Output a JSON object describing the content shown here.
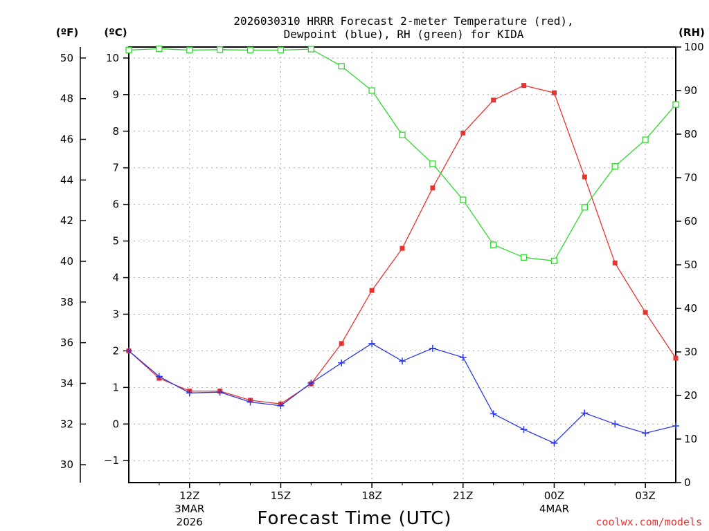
{
  "header": {
    "title_line1": "2026030310 HRRR Forecast 2-meter Temperature (red),",
    "title_line2": "Dewpoint (blue), RH (green) for KIDA",
    "unit_f": "(ºF)",
    "unit_c": "(ºC)",
    "unit_rh": "(RH)"
  },
  "footer": {
    "x_axis_label": "Forecast Time (UTC)",
    "credit": "coolwx.com/models"
  },
  "chart_data": {
    "type": "line",
    "title": "2026030310 HRRR Forecast 2-meter Temperature (red), Dewpoint (blue), RH (green) for KIDA",
    "xlabel": "Forecast Time (UTC)",
    "x_hours": [
      10,
      11,
      12,
      13,
      14,
      15,
      16,
      17,
      18,
      19,
      20,
      21,
      22,
      23,
      24,
      25,
      26,
      27,
      28
    ],
    "xlim": [
      10,
      28
    ],
    "x_ticks": [
      {
        "hour": 12,
        "label": "12Z",
        "date1": "3MAR",
        "date2": "2026"
      },
      {
        "hour": 15,
        "label": "15Z",
        "date1": "",
        "date2": ""
      },
      {
        "hour": 18,
        "label": "18Z",
        "date1": "",
        "date2": ""
      },
      {
        "hour": 21,
        "label": "21Z",
        "date1": "",
        "date2": ""
      },
      {
        "hour": 24,
        "label": "00Z",
        "date1": "4MAR",
        "date2": ""
      },
      {
        "hour": 27,
        "label": "03Z",
        "date1": "",
        "date2": ""
      }
    ],
    "y_celsius": {
      "label": "(ºC)",
      "ylim": [
        -1.6,
        10.3
      ],
      "ticks": [
        "10",
        "9",
        "8",
        "7",
        "6",
        "5",
        "4",
        "3",
        "2",
        "1",
        "0",
        "−1"
      ]
    },
    "y_fahrenheit": {
      "label": "(ºF)",
      "ticks": [
        "50",
        "48",
        "46",
        "44",
        "42",
        "40",
        "38",
        "36",
        "34",
        "32",
        "30"
      ]
    },
    "y_rh": {
      "label": "(RH)",
      "ylim": [
        0,
        100
      ],
      "ticks": [
        "100",
        "90",
        "80",
        "70",
        "60",
        "50",
        "40",
        "30",
        "20",
        "10",
        "0"
      ]
    },
    "series": [
      {
        "name": "2-meter Temperature",
        "axis": "celsius",
        "color": "#e8332e",
        "marker": "filled-square",
        "values": [
          2.0,
          1.25,
          0.9,
          0.9,
          0.65,
          0.55,
          1.1,
          2.2,
          3.65,
          4.8,
          6.45,
          7.95,
          8.85,
          9.25,
          9.05,
          6.75,
          4.4,
          3.05,
          1.8
        ]
      },
      {
        "name": "Dewpoint",
        "axis": "celsius",
        "color": "#2a38e6",
        "marker": "plus",
        "values": [
          2.0,
          1.3,
          0.85,
          0.87,
          0.6,
          0.5,
          1.12,
          1.67,
          2.2,
          1.72,
          2.07,
          1.82,
          0.28,
          -0.15,
          -0.52,
          0.3,
          0.0,
          -0.25,
          -0.05
        ]
      },
      {
        "name": "RH",
        "axis": "rh",
        "color": "#2ed82e",
        "marker": "open-square",
        "values": [
          99.3,
          99.6,
          99.3,
          99.4,
          99.3,
          99.3,
          99.5,
          95.6,
          90.0,
          79.8,
          73.2,
          64.9,
          54.6,
          51.7,
          50.9,
          63.2,
          72.6,
          78.7,
          86.8
        ]
      }
    ]
  }
}
